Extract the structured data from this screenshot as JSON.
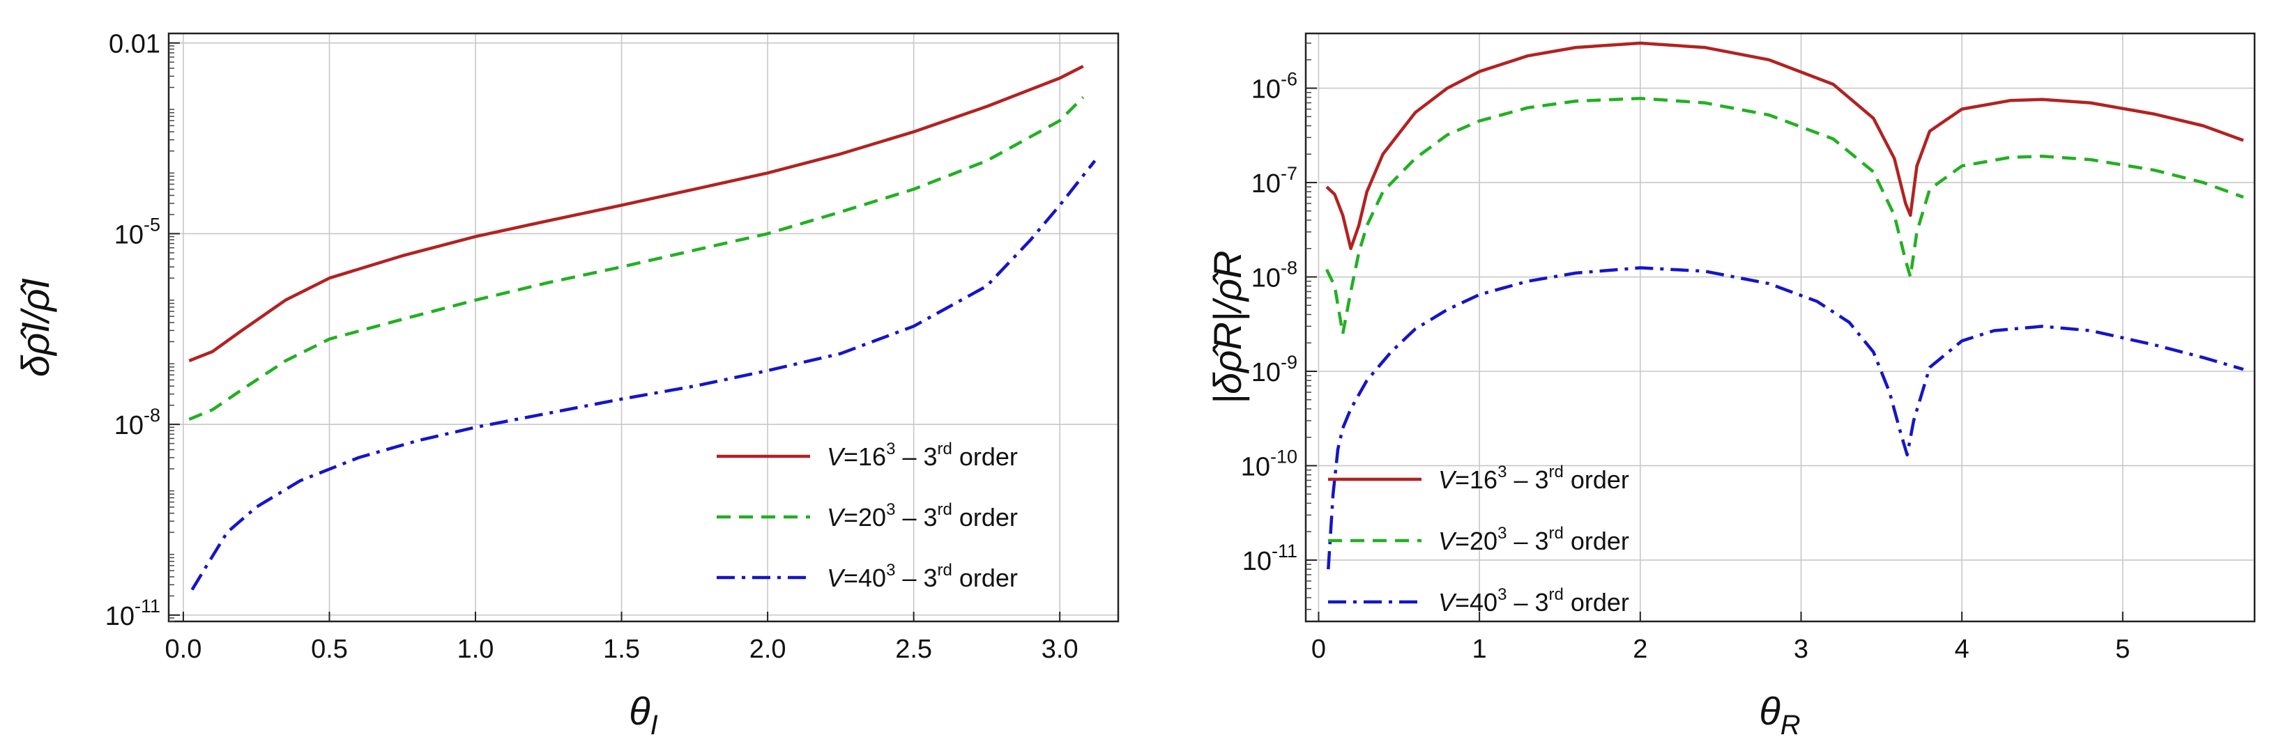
{
  "chart_data": [
    {
      "type": "line",
      "yscale": "log",
      "xlabel": "θ_I",
      "ylabel": "δρ̂_I/ρ̂_I",
      "xlim": [
        -0.05,
        3.2
      ],
      "ylim_log10": [
        -11.1,
        -1.85
      ],
      "x_ticks": [
        0.0,
        0.5,
        1.0,
        1.5,
        2.0,
        2.5,
        3.0
      ],
      "x_tick_labels": [
        "0.0",
        "0.5",
        "1.0",
        "1.5",
        "2.0",
        "2.5",
        "3.0"
      ],
      "y_tick_exponents": [
        -11,
        -8,
        -5,
        -2
      ],
      "y_tick_labels": [
        {
          "base": "10",
          "exp": "-11"
        },
        {
          "base": "10",
          "exp": "-8"
        },
        {
          "base": "10",
          "exp": "-5"
        },
        {
          "base": "0.01",
          "exp": ""
        }
      ],
      "grid": true,
      "legend_position": "bottom-right",
      "series": [
        {
          "name": "V=16^3 – 3rd order",
          "legend": {
            "v": "V",
            "eq": "=16",
            "pow": "3",
            "dash": " – 3",
            "sup": "rd",
            "rest": " order"
          },
          "color": "#b22222",
          "dash": "solid",
          "x": [
            0.02,
            0.1,
            0.2,
            0.35,
            0.5,
            0.75,
            1.0,
            1.25,
            1.5,
            1.75,
            2.0,
            2.25,
            2.5,
            2.75,
            3.0,
            3.08
          ],
          "y": [
            1e-07,
            1.4e-07,
            3e-07,
            9e-07,
            2e-06,
            4.5e-06,
            9e-06,
            1.6e-05,
            2.8e-05,
            5e-05,
            9e-05,
            0.00018,
            0.0004,
            0.001,
            0.0028,
            0.0043
          ]
        },
        {
          "name": "V=20^3 – 3rd order",
          "legend": {
            "v": "V",
            "eq": "=20",
            "pow": "3",
            "dash": " – 3",
            "sup": "rd",
            "rest": " order"
          },
          "color": "#22b022",
          "dash": "dashed",
          "x": [
            0.02,
            0.1,
            0.2,
            0.35,
            0.5,
            0.75,
            1.0,
            1.25,
            1.5,
            1.75,
            2.0,
            2.25,
            2.5,
            2.75,
            3.0,
            3.08
          ],
          "y": [
            1.2e-08,
            1.7e-08,
            3.5e-08,
            1e-07,
            2.2e-07,
            4.5e-07,
            9e-07,
            1.7e-06,
            3e-06,
            5.5e-06,
            1e-05,
            2.2e-05,
            5e-05,
            0.00014,
            0.0006,
            0.0014
          ]
        },
        {
          "name": "V=40^3 – 3rd order",
          "legend": {
            "v": "V",
            "eq": "=40",
            "pow": "3",
            "dash": " – 3",
            "sup": "rd",
            "rest": " order"
          },
          "color": "#1515c8",
          "dash": "dashdot",
          "x": [
            0.03,
            0.08,
            0.15,
            0.25,
            0.4,
            0.6,
            0.8,
            1.0,
            1.25,
            1.5,
            1.75,
            2.0,
            2.25,
            2.5,
            2.75,
            2.9,
            3.0,
            3.12
          ],
          "y": [
            2.5e-11,
            6e-11,
            2e-10,
            5e-10,
            1.3e-09,
            3e-09,
            5.5e-09,
            9e-09,
            1.5e-08,
            2.5e-08,
            4e-08,
            7e-08,
            1.3e-07,
            3.5e-07,
            1.5e-06,
            8e-06,
            2.8e-05,
            0.00014
          ]
        }
      ]
    },
    {
      "type": "line",
      "yscale": "log",
      "xlabel": "θ_R",
      "ylabel": "|δρ̂_R|/ρ̂_R",
      "xlim": [
        -0.08,
        5.82
      ],
      "ylim_log10": [
        -11.65,
        -5.42
      ],
      "x_ticks": [
        0,
        1,
        2,
        3,
        4,
        5
      ],
      "x_tick_labels": [
        "0",
        "1",
        "2",
        "3",
        "4",
        "5"
      ],
      "y_tick_exponents": [
        -11,
        -10,
        -9,
        -8,
        -7,
        -6
      ],
      "y_tick_labels": [
        {
          "base": "10",
          "exp": "-11"
        },
        {
          "base": "10",
          "exp": "-10"
        },
        {
          "base": "10",
          "exp": "-9"
        },
        {
          "base": "10",
          "exp": "-8"
        },
        {
          "base": "10",
          "exp": "-7"
        },
        {
          "base": "10",
          "exp": "-6"
        }
      ],
      "grid": true,
      "legend_position": "bottom-left",
      "series": [
        {
          "name": "V=16^3 – 3rd order",
          "legend": {
            "v": "V",
            "eq": "=16",
            "pow": "3",
            "dash": " – 3",
            "sup": "rd",
            "rest": " order"
          },
          "color": "#b22222",
          "dash": "solid",
          "x": [
            0.05,
            0.1,
            0.15,
            0.2,
            0.25,
            0.3,
            0.4,
            0.6,
            0.8,
            1.0,
            1.3,
            1.6,
            2.0,
            2.4,
            2.8,
            3.2,
            3.45,
            3.58,
            3.65,
            3.68,
            3.72,
            3.8,
            4.0,
            4.3,
            4.5,
            4.8,
            5.2,
            5.5,
            5.75
          ],
          "y": [
            9e-08,
            7.5e-08,
            4.5e-08,
            2e-08,
            3.5e-08,
            8e-08,
            2e-07,
            5.5e-07,
            1e-06,
            1.5e-06,
            2.2e-06,
            2.7e-06,
            3e-06,
            2.7e-06,
            2e-06,
            1.1e-06,
            4.8e-07,
            1.8e-07,
            6e-08,
            4.5e-08,
            1.5e-07,
            3.5e-07,
            6e-07,
            7.4e-07,
            7.6e-07,
            7e-07,
            5.3e-07,
            4e-07,
            2.8e-07
          ]
        },
        {
          "name": "V=20^3 – 3rd order",
          "legend": {
            "v": "V",
            "eq": "=20",
            "pow": "3",
            "dash": " – 3",
            "sup": "rd",
            "rest": " order"
          },
          "color": "#22b022",
          "dash": "dashed",
          "x": [
            0.05,
            0.1,
            0.15,
            0.2,
            0.25,
            0.3,
            0.4,
            0.6,
            0.8,
            1.0,
            1.3,
            1.6,
            2.0,
            2.4,
            2.8,
            3.2,
            3.45,
            3.58,
            3.65,
            3.68,
            3.72,
            3.8,
            4.0,
            4.3,
            4.5,
            4.8,
            5.2,
            5.5,
            5.75
          ],
          "y": [
            1.2e-08,
            8e-09,
            2.5e-09,
            7e-09,
            1.8e-08,
            3.5e-08,
            8e-08,
            1.8e-07,
            3.2e-07,
            4.5e-07,
            6.2e-07,
            7.3e-07,
            7.8e-07,
            7e-07,
            5.2e-07,
            2.9e-07,
            1.3e-07,
            4.5e-08,
            1.5e-08,
            1e-08,
            3e-08,
            8.5e-08,
            1.5e-07,
            1.85e-07,
            1.9e-07,
            1.75e-07,
            1.35e-07,
            1e-07,
            7e-08
          ]
        },
        {
          "name": "V=40^3 – 3rd order",
          "legend": {
            "v": "V",
            "eq": "=40",
            "pow": "3",
            "dash": " – 3",
            "sup": "rd",
            "rest": " order"
          },
          "color": "#1515c8",
          "dash": "dashdot",
          "x": [
            0.06,
            0.09,
            0.12,
            0.15,
            0.2,
            0.3,
            0.45,
            0.6,
            0.8,
            1.0,
            1.3,
            1.6,
            2.0,
            2.4,
            2.8,
            3.1,
            3.3,
            3.45,
            3.55,
            3.62,
            3.66,
            3.7,
            3.8,
            4.0,
            4.2,
            4.5,
            4.8,
            5.2,
            5.5,
            5.75
          ],
          "y": [
            8e-12,
            5e-11,
            1.5e-10,
            2.5e-10,
            4e-10,
            8e-10,
            1.6e-09,
            2.8e-09,
            4.5e-09,
            6.5e-09,
            9e-09,
            1.1e-08,
            1.25e-08,
            1.15e-08,
            8.5e-09,
            5.5e-09,
            3.3e-09,
            1.6e-09,
            6e-10,
            2.2e-10,
            1.3e-10,
            3e-10,
            1.1e-09,
            2.1e-09,
            2.7e-09,
            3e-09,
            2.7e-09,
            1.9e-09,
            1.4e-09,
            1.05e-09
          ]
        }
      ]
    }
  ]
}
